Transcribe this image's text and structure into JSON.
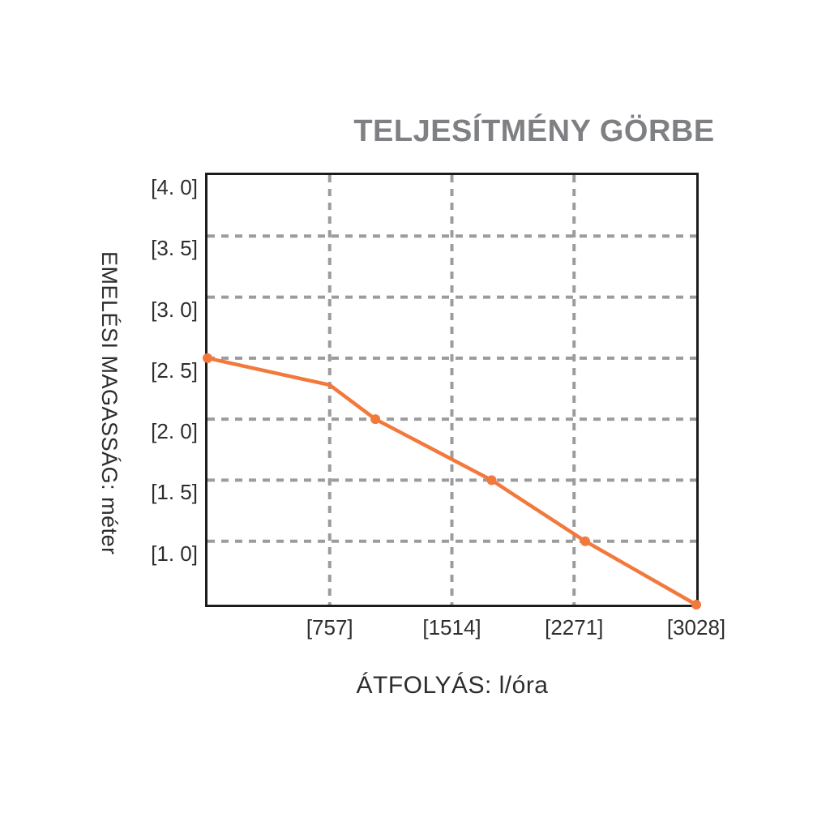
{
  "chart_data": {
    "type": "line",
    "title": "TELJESÍTMÉNY GÖRBE",
    "xlabel": "ÁTFOLYÁS: l/óra",
    "ylabel": "EMELÉSI MAGASSÁG: méter",
    "xlim": [
      0,
      3028
    ],
    "ylim": [
      0.48,
      4.0
    ],
    "grid": "dashed",
    "x_gridlines": [
      757,
      1514,
      2271
    ],
    "y_gridlines": [
      3.5,
      3.0,
      2.5,
      2.0,
      1.5,
      1.0
    ],
    "xticks": [
      {
        "value": 757,
        "label": "[757]"
      },
      {
        "value": 1514,
        "label": "[1514]"
      },
      {
        "value": 2271,
        "label": "[2271]"
      },
      {
        "value": 3028,
        "label": "[3028]"
      }
    ],
    "yticks": [
      {
        "value": 4.0,
        "label": "[4. 0]"
      },
      {
        "value": 3.5,
        "label": "[3. 5]"
      },
      {
        "value": 3.0,
        "label": "[3. 0]"
      },
      {
        "value": 2.5,
        "label": "[2. 5]"
      },
      {
        "value": 2.0,
        "label": "[2. 0]"
      },
      {
        "value": 1.5,
        "label": "[1. 5]"
      },
      {
        "value": 1.0,
        "label": "[1. 0]"
      }
    ],
    "series": [
      {
        "name": "pump-performance-curve",
        "color": "#F2793B",
        "line_width": 4.5,
        "marker_radius": 6,
        "points": [
          {
            "x": 0,
            "y": 2.5,
            "marker": true
          },
          {
            "x": 757,
            "y": 2.28,
            "marker": false
          },
          {
            "x": 1040,
            "y": 2.0,
            "marker": true
          },
          {
            "x": 1760,
            "y": 1.5,
            "marker": true
          },
          {
            "x": 2340,
            "y": 1.0,
            "marker": true
          },
          {
            "x": 3028,
            "y": 0.48,
            "marker": true
          }
        ]
      }
    ],
    "legend": "none"
  },
  "colors": {
    "background": "#FFFFFF",
    "accent_orange": "#F2793B",
    "grid_gray": "#9C9C9E",
    "axis_black": "#1C1C1C",
    "title_gray": "#7E8083",
    "text_dark": "#2D2D2F"
  }
}
